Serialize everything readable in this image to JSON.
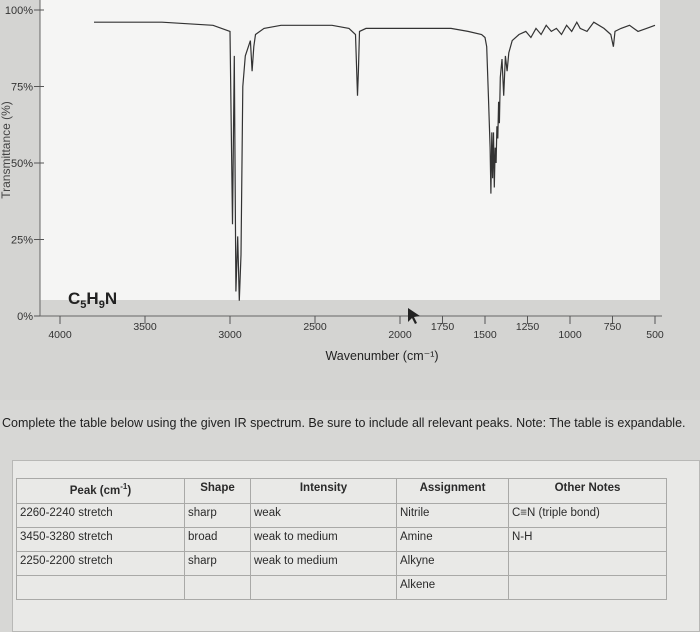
{
  "chart_data": {
    "type": "line",
    "formula": "C5H9N",
    "formula_parts": [
      "C",
      "5",
      "H",
      "9",
      "N"
    ],
    "xlabel": "Wavenumber (cm⁻¹)",
    "xlim": [
      4000,
      500
    ],
    "x_ticks": [
      "4000",
      "3500",
      "3000",
      "2500",
      "2000",
      "1750",
      "1500",
      "1250",
      "1000",
      "750",
      "500"
    ],
    "ylim": [
      0,
      100
    ],
    "y_ticks": [
      "0%",
      "25%",
      "50%",
      "75%",
      "100%"
    ],
    "ylabel": "Transmittance (%)",
    "grid": false,
    "series": [
      {
        "x": [
          3800,
          3400,
          3100,
          3000,
          2985,
          2975,
          2965,
          2955,
          2945,
          2935,
          2925,
          2910,
          2880,
          2870,
          2860,
          2850,
          2800,
          2700,
          2400,
          2300,
          2262,
          2250,
          2245,
          2238,
          2200,
          2000,
          1800,
          1700,
          1600,
          1520,
          1500,
          1490,
          1480,
          1470,
          1465,
          1460,
          1455,
          1450,
          1445,
          1440,
          1435,
          1430,
          1425,
          1420,
          1415,
          1410,
          1400,
          1390,
          1380,
          1370,
          1360,
          1340,
          1300,
          1260,
          1230,
          1200,
          1170,
          1140,
          1110,
          1080,
          1050,
          1020,
          990,
          960,
          940,
          900,
          860,
          800,
          760,
          745,
          735,
          700,
          650,
          600,
          550,
          500
        ],
        "y": [
          96,
          96,
          95,
          93,
          30,
          85,
          8,
          26,
          5,
          20,
          75,
          85,
          90,
          80,
          88,
          92,
          94,
          95,
          95,
          94,
          92,
          72,
          80,
          93,
          94,
          94,
          94,
          94,
          93,
          92,
          91,
          88,
          72,
          55,
          40,
          60,
          45,
          60,
          42,
          55,
          50,
          62,
          58,
          70,
          63,
          78,
          84,
          72,
          85,
          80,
          86,
          90,
          92,
          93,
          91,
          94,
          92,
          95,
          93,
          94,
          92,
          95,
          93,
          96,
          94,
          93,
          96,
          94,
          92,
          88,
          93,
          94,
          95,
          93,
          94,
          95
        ]
      }
    ]
  },
  "question": "Complete the table below using the given IR spectrum. Be sure to include all relevant peaks. Note: The table is expandable.",
  "table": {
    "headers": {
      "peak": "Peak (cm",
      "peak_sup": "-1",
      "peak_close": ")",
      "shape": "Shape",
      "intensity": "Intensity",
      "assignment": "Assignment",
      "notes": "Other Notes"
    },
    "rows": [
      {
        "peak": "2260-2240 stretch",
        "shape": "sharp",
        "intensity": "weak",
        "assignment": "Nitrile",
        "notes": "C≡N (triple bond)"
      },
      {
        "peak": "3450-3280 stretch",
        "shape": "broad",
        "intensity": "weak to medium",
        "assignment": "Amine",
        "notes": "N-H"
      },
      {
        "peak": "2250-2200 stretch",
        "shape": "sharp",
        "intensity": "weak to medium",
        "assignment": "Alkyne",
        "notes": ""
      },
      {
        "peak": "",
        "shape": "",
        "intensity": "",
        "assignment": "Alkene",
        "notes": ""
      }
    ]
  }
}
